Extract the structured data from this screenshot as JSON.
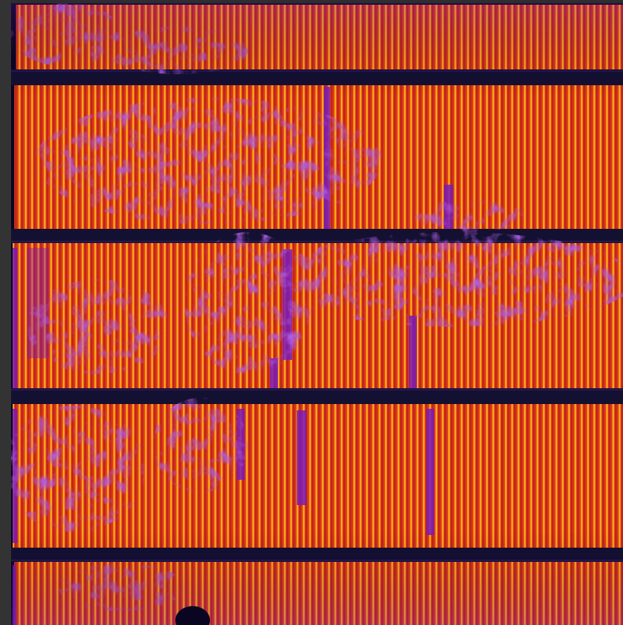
{
  "image": {
    "subject": "electroluminescence-cell-image",
    "palette": {
      "background": "#2e2e2e",
      "dark": "#0a0622",
      "busbar": "#141032",
      "defect": "#6a1cc0",
      "finger_dark": "#c8261e",
      "finger_bright": "#ffb814"
    }
  }
}
